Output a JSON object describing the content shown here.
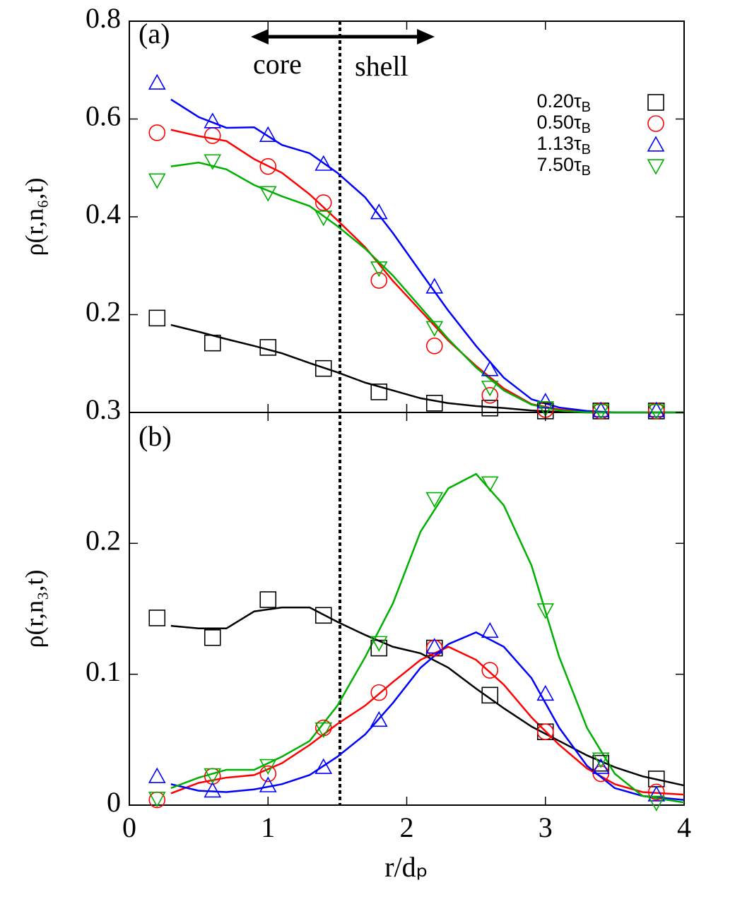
{
  "chart_data": [
    {
      "type": "line",
      "panel_label": "(a)",
      "y_label": "ρ(r,n₆,t)",
      "xlim": [
        0,
        4
      ],
      "ylim": [
        0,
        0.8
      ],
      "yticks": [
        0.2,
        0.4,
        0.6,
        0.8
      ],
      "x": [
        0.2,
        0.6,
        1.0,
        1.4,
        1.8,
        2.2,
        2.6,
        3.0,
        3.4,
        3.8
      ],
      "line_x": [
        0.3,
        0.5,
        0.7,
        0.9,
        1.1,
        1.3,
        1.5,
        1.7,
        1.9,
        2.1,
        2.3,
        2.5,
        2.7,
        2.9,
        3.1,
        3.3,
        3.5,
        3.7,
        4.0
      ],
      "annotations": [
        "core",
        "shell"
      ],
      "series": [
        {
          "name": "0.20τB",
          "color": "#000000",
          "marker": "square",
          "values": [
            0.193,
            0.142,
            0.133,
            0.09,
            0.042,
            0.019,
            0.009,
            0.003,
            0.003,
            0.003
          ],
          "line_values": [
            0.179,
            0.165,
            0.15,
            0.136,
            0.121,
            0.101,
            0.082,
            0.061,
            0.045,
            0.029,
            0.019,
            0.013,
            0.009,
            0.004,
            0.001,
            0,
            0,
            0,
            0
          ]
        },
        {
          "name": "0.50τB",
          "color": "#ff0000",
          "marker": "circle",
          "values": [
            0.572,
            0.566,
            0.503,
            0.429,
            0.27,
            0.136,
            0.035,
            0.006,
            0.003,
            0.003
          ],
          "line_values": [
            0.578,
            0.565,
            0.555,
            0.518,
            0.49,
            0.446,
            0.393,
            0.338,
            0.269,
            0.208,
            0.147,
            0.095,
            0.049,
            0.017,
            0.006,
            0.001,
            0,
            0,
            0
          ]
        },
        {
          "name": "1.13τB",
          "color": "#0000ff",
          "marker": "triangle-up",
          "values": [
            0.674,
            0.595,
            0.567,
            0.508,
            0.409,
            0.257,
            0.088,
            0.022,
            0.004,
            0.004
          ],
          "line_values": [
            0.64,
            0.604,
            0.582,
            0.583,
            0.547,
            0.53,
            0.49,
            0.44,
            0.367,
            0.287,
            0.208,
            0.136,
            0.071,
            0.027,
            0.01,
            0.003,
            0,
            0,
            0
          ]
        },
        {
          "name": "7.50τB",
          "color": "#00b000",
          "marker": "triangle-down",
          "values": [
            0.475,
            0.514,
            0.449,
            0.399,
            0.295,
            0.173,
            0.051,
            0.009,
            0.003,
            0.003
          ],
          "line_values": [
            0.503,
            0.511,
            0.497,
            0.465,
            0.442,
            0.422,
            0.381,
            0.335,
            0.28,
            0.215,
            0.15,
            0.092,
            0.045,
            0.016,
            0.004,
            0,
            0,
            0,
            0
          ]
        }
      ]
    },
    {
      "type": "line",
      "panel_label": "(b)",
      "y_label": "ρ(r,n₃,t)",
      "x_label": "r/dₚ",
      "xlim": [
        0,
        4
      ],
      "ylim": [
        0,
        0.3
      ],
      "xticks": [
        0,
        1,
        2,
        3,
        4
      ],
      "yticks": [
        0,
        0.1,
        0.2,
        0.3
      ],
      "x": [
        0.2,
        0.6,
        1.0,
        1.4,
        1.8,
        2.2,
        2.6,
        3.0,
        3.4,
        3.8
      ],
      "line_x": [
        0.3,
        0.5,
        0.7,
        0.9,
        1.1,
        1.3,
        1.5,
        1.7,
        1.9,
        2.1,
        2.3,
        2.5,
        2.7,
        2.9,
        3.1,
        3.3,
        3.5,
        3.7,
        4.0
      ],
      "series": [
        {
          "color": "#000000",
          "marker": "square",
          "values": [
            0.143,
            0.128,
            0.157,
            0.145,
            0.12,
            0.12,
            0.084,
            0.056,
            0.032,
            0.02
          ],
          "line_values": [
            0.137,
            0.135,
            0.135,
            0.148,
            0.151,
            0.151,
            0.14,
            0.13,
            0.121,
            0.116,
            0.105,
            0.089,
            0.074,
            0.06,
            0.049,
            0.038,
            0.029,
            0.022,
            0.015
          ]
        },
        {
          "color": "#ff0000",
          "marker": "circle",
          "values": [
            0.004,
            0.022,
            0.024,
            0.059,
            0.086,
            0.12,
            0.103,
            0.056,
            0.024,
            0.01
          ],
          "line_values": [
            0.009,
            0.017,
            0.021,
            0.023,
            0.032,
            0.046,
            0.062,
            0.076,
            0.094,
            0.111,
            0.121,
            0.111,
            0.092,
            0.067,
            0.046,
            0.028,
            0.016,
            0.01,
            0.008
          ]
        },
        {
          "color": "#0000ff",
          "marker": "triangle-up",
          "values": [
            0.022,
            0.011,
            0.015,
            0.029,
            0.065,
            0.121,
            0.133,
            0.085,
            0.029,
            0.008
          ],
          "line_values": [
            0.016,
            0.011,
            0.01,
            0.012,
            0.016,
            0.023,
            0.037,
            0.054,
            0.078,
            0.105,
            0.123,
            0.132,
            0.121,
            0.097,
            0.059,
            0.03,
            0.013,
            0.007,
            0.004
          ]
        },
        {
          "color": "#00b000",
          "marker": "triangle-down",
          "values": [
            0.005,
            0.023,
            0.03,
            0.058,
            0.124,
            0.234,
            0.246,
            0.149,
            0.035,
            0.002
          ],
          "line_values": [
            0.013,
            0.021,
            0.027,
            0.027,
            0.037,
            0.049,
            0.076,
            0.113,
            0.154,
            0.209,
            0.242,
            0.253,
            0.229,
            0.183,
            0.113,
            0.059,
            0.024,
            0.007,
            0.002
          ]
        }
      ]
    }
  ]
}
